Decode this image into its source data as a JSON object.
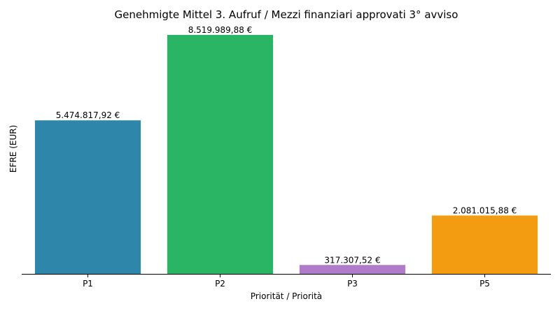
{
  "chart_data": {
    "type": "bar",
    "title": "Genehmigte Mittel 3. Aufruf / Mezzi finanziari approvati 3° avviso",
    "xlabel": "Priorität / Priorità",
    "ylabel": "EFRE (EUR)",
    "categories": [
      "P1",
      "P2",
      "P3",
      "P5"
    ],
    "values": [
      5474817.92,
      8519989.88,
      317307.52,
      2081015.88
    ],
    "value_labels": [
      "5.474.817,92 €",
      "8.519.989,88 €",
      "317.307,52 €",
      "2.081.015,88 €"
    ],
    "colors": [
      "#2e86ab",
      "#2ab565",
      "#b07cc9",
      "#f39c12"
    ],
    "ylim": [
      0,
      8519989.88
    ],
    "grid": false,
    "legend": "none"
  }
}
